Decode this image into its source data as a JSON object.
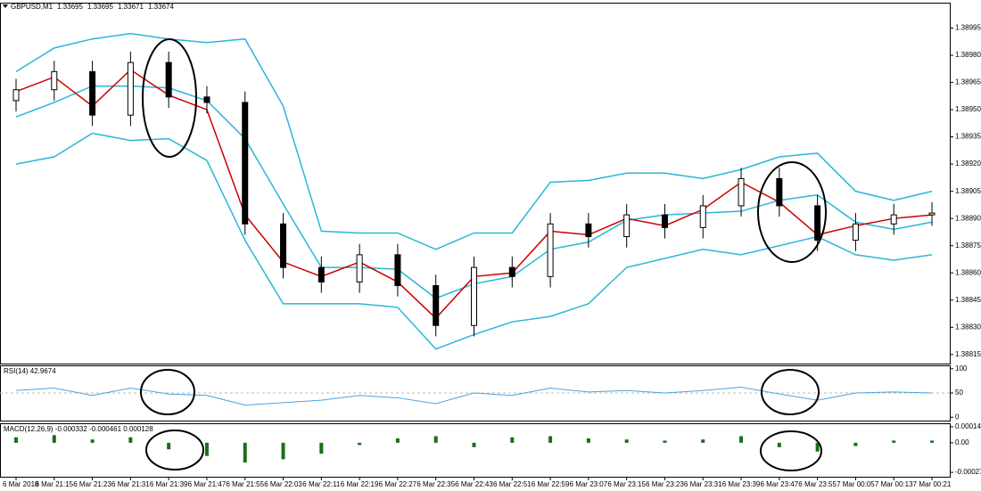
{
  "chart_data": [
    {
      "type": "candlestick",
      "title": "GBPUSD,M1",
      "header_values": [
        1.33695,
        1.33695,
        1.33671,
        1.33674
      ],
      "categories": [
        "6 Mar 2018",
        "6 Mar 21:15",
        "6 Mar 21:23",
        "6 Mar 21:31",
        "6 Mar 21:39",
        "6 Mar 21:47",
        "6 Mar 21:55",
        "6 Mar 22:03",
        "6 Mar 22:11",
        "6 Mar 22:19",
        "6 Mar 22:27",
        "6 Mar 22:35",
        "6 Mar 22:43",
        "6 Mar 22:51",
        "6 Mar 22:59",
        "6 Mar 23:07",
        "6 Mar 23:15",
        "6 Mar 23:23",
        "6 Mar 23:31",
        "6 Mar 23:39",
        "6 Mar 23:47",
        "6 Mar 23:55",
        "7 Mar 00:05",
        "7 Mar 00:13",
        "7 Mar 00:21"
      ],
      "open": [
        1.38955,
        1.38961,
        1.38971,
        1.38947,
        1.38976,
        1.38957,
        1.38954,
        1.38887,
        1.38863,
        1.38855,
        1.3887,
        1.38853,
        1.38831,
        1.38863,
        1.38858,
        1.38887,
        1.3888,
        1.38892,
        1.38885,
        1.38897,
        1.38912,
        1.38897,
        1.38878,
        1.38887,
        1.38892
      ],
      "high": [
        1.38967,
        1.38977,
        1.38977,
        1.38982,
        1.38982,
        1.38963,
        1.3896,
        1.38893,
        1.38869,
        1.38876,
        1.38876,
        1.38859,
        1.38869,
        1.38869,
        1.38893,
        1.38893,
        1.38898,
        1.38898,
        1.38903,
        1.38918,
        1.38918,
        1.38903,
        1.38893,
        1.38898,
        1.38899
      ],
      "low": [
        1.38949,
        1.38955,
        1.38941,
        1.38941,
        1.38951,
        1.38948,
        1.38881,
        1.38857,
        1.38849,
        1.38849,
        1.38847,
        1.38825,
        1.38825,
        1.38852,
        1.38852,
        1.38874,
        1.38874,
        1.38879,
        1.38879,
        1.38891,
        1.38891,
        1.38872,
        1.38872,
        1.38881,
        1.38886
      ],
      "close": [
        1.38961,
        1.38971,
        1.38947,
        1.38976,
        1.38957,
        1.38954,
        1.38887,
        1.38863,
        1.38855,
        1.3887,
        1.38853,
        1.38831,
        1.38863,
        1.38858,
        1.38887,
        1.3888,
        1.38892,
        1.38885,
        1.38897,
        1.38912,
        1.38897,
        1.38878,
        1.38887,
        1.38892,
        1.38893
      ],
      "up_color": "#ffffff",
      "down_color": "#000000",
      "series": [
        {
          "color": "#29b6d8",
          "values": [
            1.38971,
            1.38984,
            1.38989,
            1.38992,
            1.38989,
            1.38987,
            1.38989,
            1.38952,
            1.38883,
            1.38882,
            1.38882,
            1.38873,
            1.38882,
            1.38882,
            1.3891,
            1.38911,
            1.38915,
            1.38915,
            1.38912,
            1.38917,
            1.38924,
            1.38926,
            1.38905,
            1.389,
            1.38905
          ]
        },
        {
          "color": "#29b6d8",
          "values": [
            1.38946,
            1.38954,
            1.38963,
            1.38963,
            1.38962,
            1.38955,
            1.38934,
            1.38898,
            1.38863,
            1.38863,
            1.38862,
            1.38846,
            1.38854,
            1.38858,
            1.38873,
            1.38877,
            1.38889,
            1.38892,
            1.38893,
            1.38894,
            1.389,
            1.38903,
            1.38888,
            1.38884,
            1.38888
          ]
        },
        {
          "color": "#29b6d8",
          "values": [
            1.3892,
            1.38924,
            1.38937,
            1.38933,
            1.38934,
            1.38922,
            1.38878,
            1.38843,
            1.38843,
            1.38843,
            1.38841,
            1.38818,
            1.38826,
            1.38833,
            1.38836,
            1.38843,
            1.38863,
            1.38868,
            1.38873,
            1.3887,
            1.38875,
            1.3888,
            1.3887,
            1.38867,
            1.3887
          ]
        },
        {
          "color": "#cc0000",
          "values": [
            1.3896,
            1.38968,
            1.38952,
            1.38972,
            1.38958,
            1.3895,
            1.38892,
            1.38866,
            1.38858,
            1.38866,
            1.38855,
            1.38835,
            1.38858,
            1.3886,
            1.38883,
            1.38881,
            1.3889,
            1.38886,
            1.38895,
            1.3891,
            1.38899,
            1.38881,
            1.38886,
            1.3889,
            1.38892
          ]
        }
      ],
      "ylim": [
        1.3881,
        1.39009
      ],
      "yticks": [
        1.38815,
        {
          "value": 1.3883,
          "label": "1.38830"
        },
        1.38845,
        {
          "value": 1.3886,
          "label": "1.38860"
        },
        1.38875,
        {
          "value": 1.3889,
          "label": "1.38890"
        },
        1.38905,
        {
          "value": 1.3892,
          "label": "1.38920"
        },
        1.38935,
        {
          "value": 1.3895,
          "label": "1.38950"
        },
        1.38965,
        {
          "value": 1.3898,
          "label": "1.38980"
        },
        1.38995
      ]
    },
    {
      "type": "line",
      "title": "RSI(14) 42.9674",
      "color": "#4aa3df",
      "values": [
        55,
        60,
        45,
        60,
        48,
        45,
        25,
        30,
        35,
        45,
        40,
        28,
        50,
        45,
        60,
        52,
        55,
        50,
        55,
        62,
        48,
        35,
        50,
        52,
        50
      ],
      "ylim": [
        -7,
        107
      ],
      "yticks": [
        0,
        50,
        100
      ],
      "levels": [
        50
      ]
    },
    {
      "type": "bar",
      "title": "MACD(12,26,9) -0.000332 -0.000461 0.000128",
      "color": "#1a6e1a",
      "values": [
        5e-05,
        7e-05,
        3e-05,
        5e-05,
        -6e-05,
        -0.00012,
        -0.00018,
        -0.00015,
        -0.0001,
        -2e-05,
        4e-05,
        6e-05,
        -4e-05,
        5e-05,
        6e-05,
        4e-05,
        3e-05,
        2e-05,
        3e-05,
        6e-05,
        -4e-05,
        -8e-05,
        -3e-05,
        2e-05,
        2e-05
      ],
      "ylim": [
        -0.00031,
        0.000178
      ],
      "yticks": [
        0.000146,
        {
          "value": 0,
          "label": "0.00"
        },
        -0.00027
      ]
    }
  ]
}
